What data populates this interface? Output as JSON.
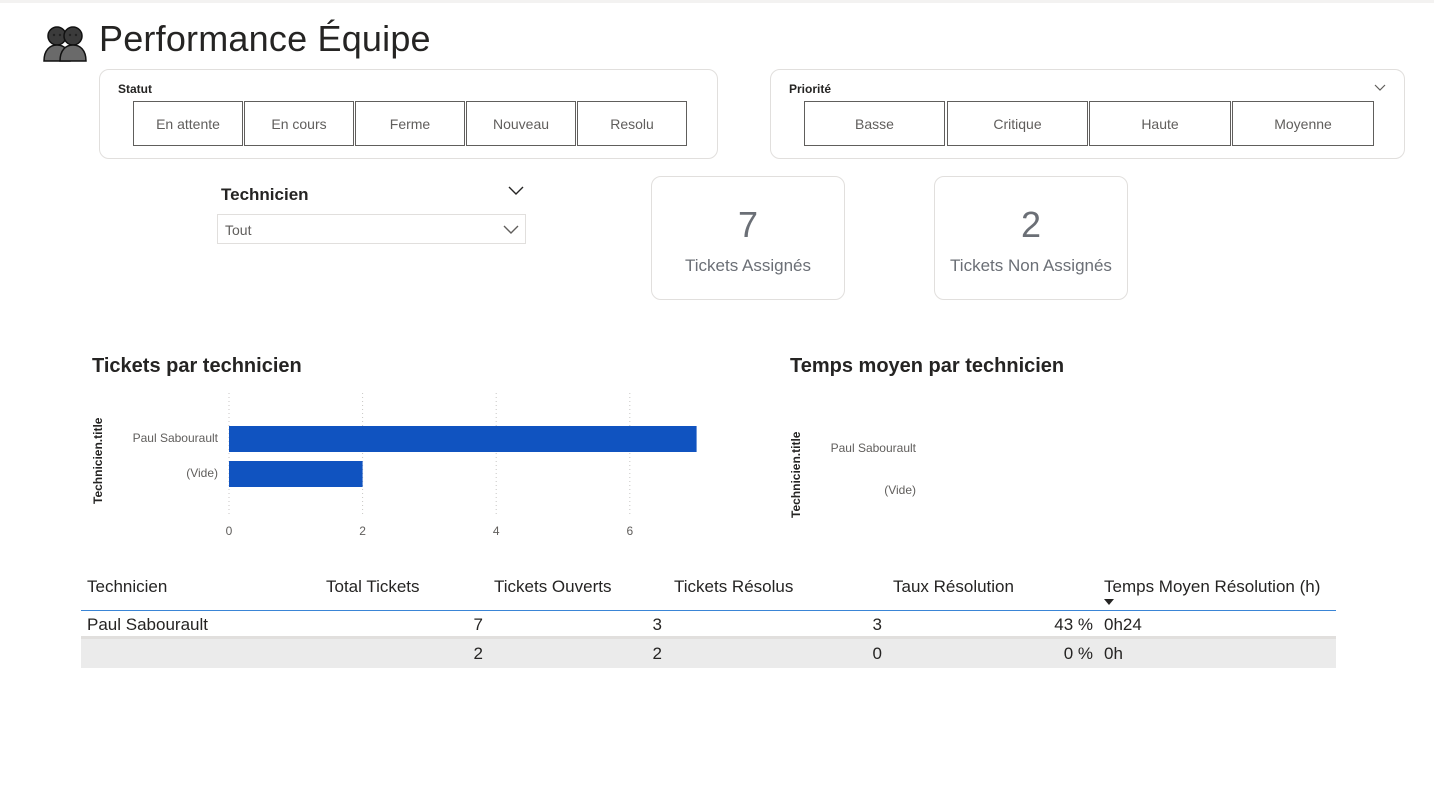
{
  "header": {
    "title": "Performance Équipe",
    "icon": "people-icon"
  },
  "filters": {
    "statut": {
      "title": "Statut",
      "options": [
        "En attente",
        "En cours",
        "Ferme",
        "Nouveau",
        "Resolu"
      ]
    },
    "priorite": {
      "title": "Priorité",
      "options": [
        "Basse",
        "Critique",
        "Haute",
        "Moyenne"
      ]
    },
    "technicien": {
      "title": "Technicien",
      "selected": "Tout"
    }
  },
  "kpis": [
    {
      "value": "7",
      "label": "Tickets Assignés"
    },
    {
      "value": "2",
      "label": "Tickets Non Assignés"
    }
  ],
  "charts": {
    "tickets_par_technicien": {
      "title": "Tickets par technicien",
      "axis_title": "Technicien.title"
    },
    "temps_moyen": {
      "title": "Temps moyen par technicien",
      "axis_title": "Technicien.title"
    }
  },
  "chart_data": [
    {
      "type": "bar",
      "orientation": "horizontal",
      "title": "Tickets par technicien",
      "ylabel": "Technicien.title",
      "xlabel": "",
      "categories": [
        "Paul Sabourault",
        "(Vide)"
      ],
      "values": [
        7,
        2
      ],
      "xlim": [
        0,
        7
      ],
      "x_ticks": [
        0,
        2,
        4,
        6
      ],
      "grid": "vertical dotted",
      "color": "#1053c0"
    },
    {
      "type": "bar",
      "orientation": "horizontal",
      "title": "Temps moyen par technicien",
      "ylabel": "Technicien.title",
      "categories": [
        "Paul Sabourault",
        "(Vide)"
      ]
    }
  ],
  "table": {
    "columns": [
      "Technicien",
      "Total Tickets",
      "Tickets Ouverts",
      "Tickets Résolus",
      "Taux Résolution",
      "Temps Moyen Résolution (h)"
    ],
    "rows": [
      [
        "Paul Sabourault",
        "7",
        "3",
        "3",
        "43 %",
        "0h24"
      ],
      [
        "",
        "2",
        "2",
        "0",
        "0 %",
        "0h"
      ]
    ],
    "sorted_column": "Temps Moyen Résolution (h)"
  },
  "colors": {
    "bar": "#1053c0",
    "accent_rule": "#3a85d6",
    "kpi_text": "#6b6f76"
  }
}
